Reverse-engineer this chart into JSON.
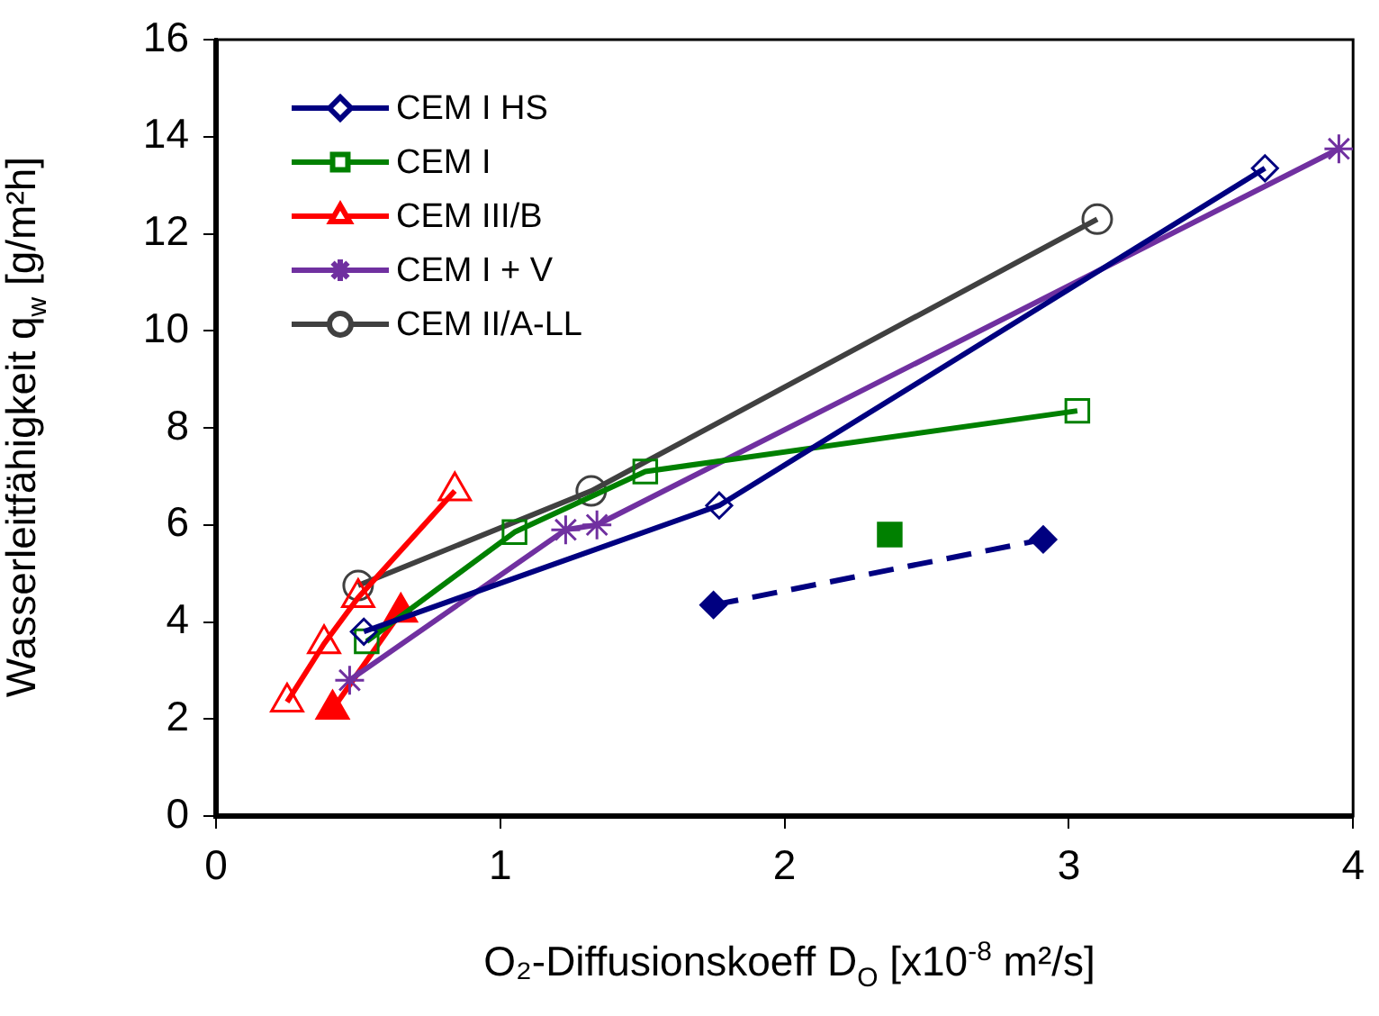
{
  "chart_data": {
    "type": "line",
    "xlabel": "O₂-Diffusionskoeff D$_{O}$ [x10$^{-8}$ m²/s]",
    "ylabel": "Wasserleitfähigkeit q$_{w}$ [g/m²h]",
    "xlim": [
      0,
      4
    ],
    "xticks": [
      0,
      1,
      2,
      3,
      4
    ],
    "ylim": [
      0,
      16
    ],
    "yticks": [
      0,
      2,
      4,
      6,
      8,
      10,
      12,
      14,
      16
    ],
    "grid": false,
    "legend": "top left",
    "series": [
      {
        "name": "CEM I HS",
        "color": "#000080",
        "marker": "diamond",
        "x": [
          0.52,
          1.77,
          3.69
        ],
        "values": [
          3.8,
          6.4,
          13.35
        ]
      },
      {
        "name": "CEM I",
        "color": "#008000",
        "marker": "square",
        "x": [
          0.53,
          1.05,
          1.51,
          3.03
        ],
        "values": [
          3.6,
          5.85,
          7.1,
          8.35
        ]
      },
      {
        "name": "CEM III/B",
        "color": "#ff0000",
        "marker": "triangle",
        "x": [
          0.25,
          0.38,
          0.5,
          0.84
        ],
        "values": [
          2.35,
          3.55,
          4.5,
          6.7
        ]
      },
      {
        "name": "CEM I + V",
        "color": "#7030a0",
        "marker": "cross",
        "x": [
          0.47,
          1.23,
          1.34,
          3.95
        ],
        "values": [
          2.8,
          5.9,
          6.0,
          13.75
        ]
      },
      {
        "name": "CEM II/A-LL",
        "color": "#404040",
        "marker": "circle",
        "x": [
          0.5,
          1.32,
          3.1
        ],
        "values": [
          4.75,
          6.7,
          12.3
        ]
      },
      {
        "color": "#000080",
        "marker": "diamond",
        "line_style": "dashed",
        "x": [
          1.75,
          2.91
        ],
        "values": [
          4.35,
          5.7
        ]
      },
      {
        "color": "#008000",
        "marker": "square",
        "x": [
          2.37
        ],
        "values": [
          5.8
        ]
      },
      {
        "color": "#ff0000",
        "marker": "triangle",
        "x": [
          0.41,
          0.65
        ],
        "values": [
          2.2,
          4.2
        ]
      }
    ]
  }
}
